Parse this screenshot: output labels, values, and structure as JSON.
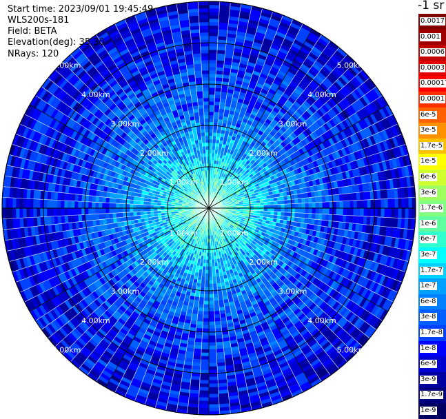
{
  "header": {
    "start_time": "Start time: 2023/09/01 19:45:49",
    "instrument": "WLS200s-181",
    "field": "Field: BETA",
    "elevation": "Elevation(deg): 35.30",
    "nrays": "NRays: 120"
  },
  "colorbar": {
    "unit_title": "-1 sr",
    "labels": [
      "0.0017",
      "0.001",
      "0.0006",
      "0.0003",
      "0.00017",
      "0.0001",
      "6e-5",
      "3e-5",
      "1.7e-5",
      "1e-5",
      "6e-6",
      "3e-6",
      "1.7e-6",
      "1e-6",
      "6e-7",
      "3e-7",
      "1.7e-7",
      "1e-7",
      "6e-8",
      "3e-8",
      "1.7e-8",
      "1e-8",
      "6e-9",
      "3e-9",
      "1.7e-9",
      "1e-9"
    ],
    "colors": [
      "#800000",
      "#a00000",
      "#c00000",
      "#e00000",
      "#ff0000",
      "#ff3000",
      "#ff6000",
      "#ff9000",
      "#ffc000",
      "#ffff00",
      "#d0ff30",
      "#a0ff60",
      "#80ff80",
      "#60ffa0",
      "#30ffd0",
      "#00ffff",
      "#00d0ff",
      "#00a0ff",
      "#0080ff",
      "#0060ff",
      "#0040ff",
      "#0000ff",
      "#0000d0",
      "#0000a0",
      "#000080",
      "#000060"
    ]
  },
  "chart_data": {
    "type": "heatmap",
    "projection": "polar",
    "field": "BETA",
    "nrays": 120,
    "elevation_deg": 35.3,
    "range_rings_km": [
      1,
      2,
      3,
      4,
      5
    ],
    "range_ring_labels": [
      "1.00km",
      "2.00km",
      "3.00km",
      "4.00km",
      "5.00km"
    ],
    "max_range_km": 5.0,
    "spoke_angles_deg": [
      0,
      30,
      60,
      90,
      120,
      150,
      180,
      210,
      240,
      270,
      300,
      330
    ],
    "radial_profile_log10": {
      "range_km": [
        0.0,
        0.5,
        1.0,
        1.5,
        2.0,
        3.0,
        4.0,
        5.0
      ],
      "value": [
        -6.0,
        -6.3,
        -6.6,
        -7.0,
        -7.3,
        -7.7,
        -8.0,
        -8.2
      ]
    },
    "colorbar_range": [
      "1e-9",
      "0.0017"
    ],
    "grid": true
  }
}
